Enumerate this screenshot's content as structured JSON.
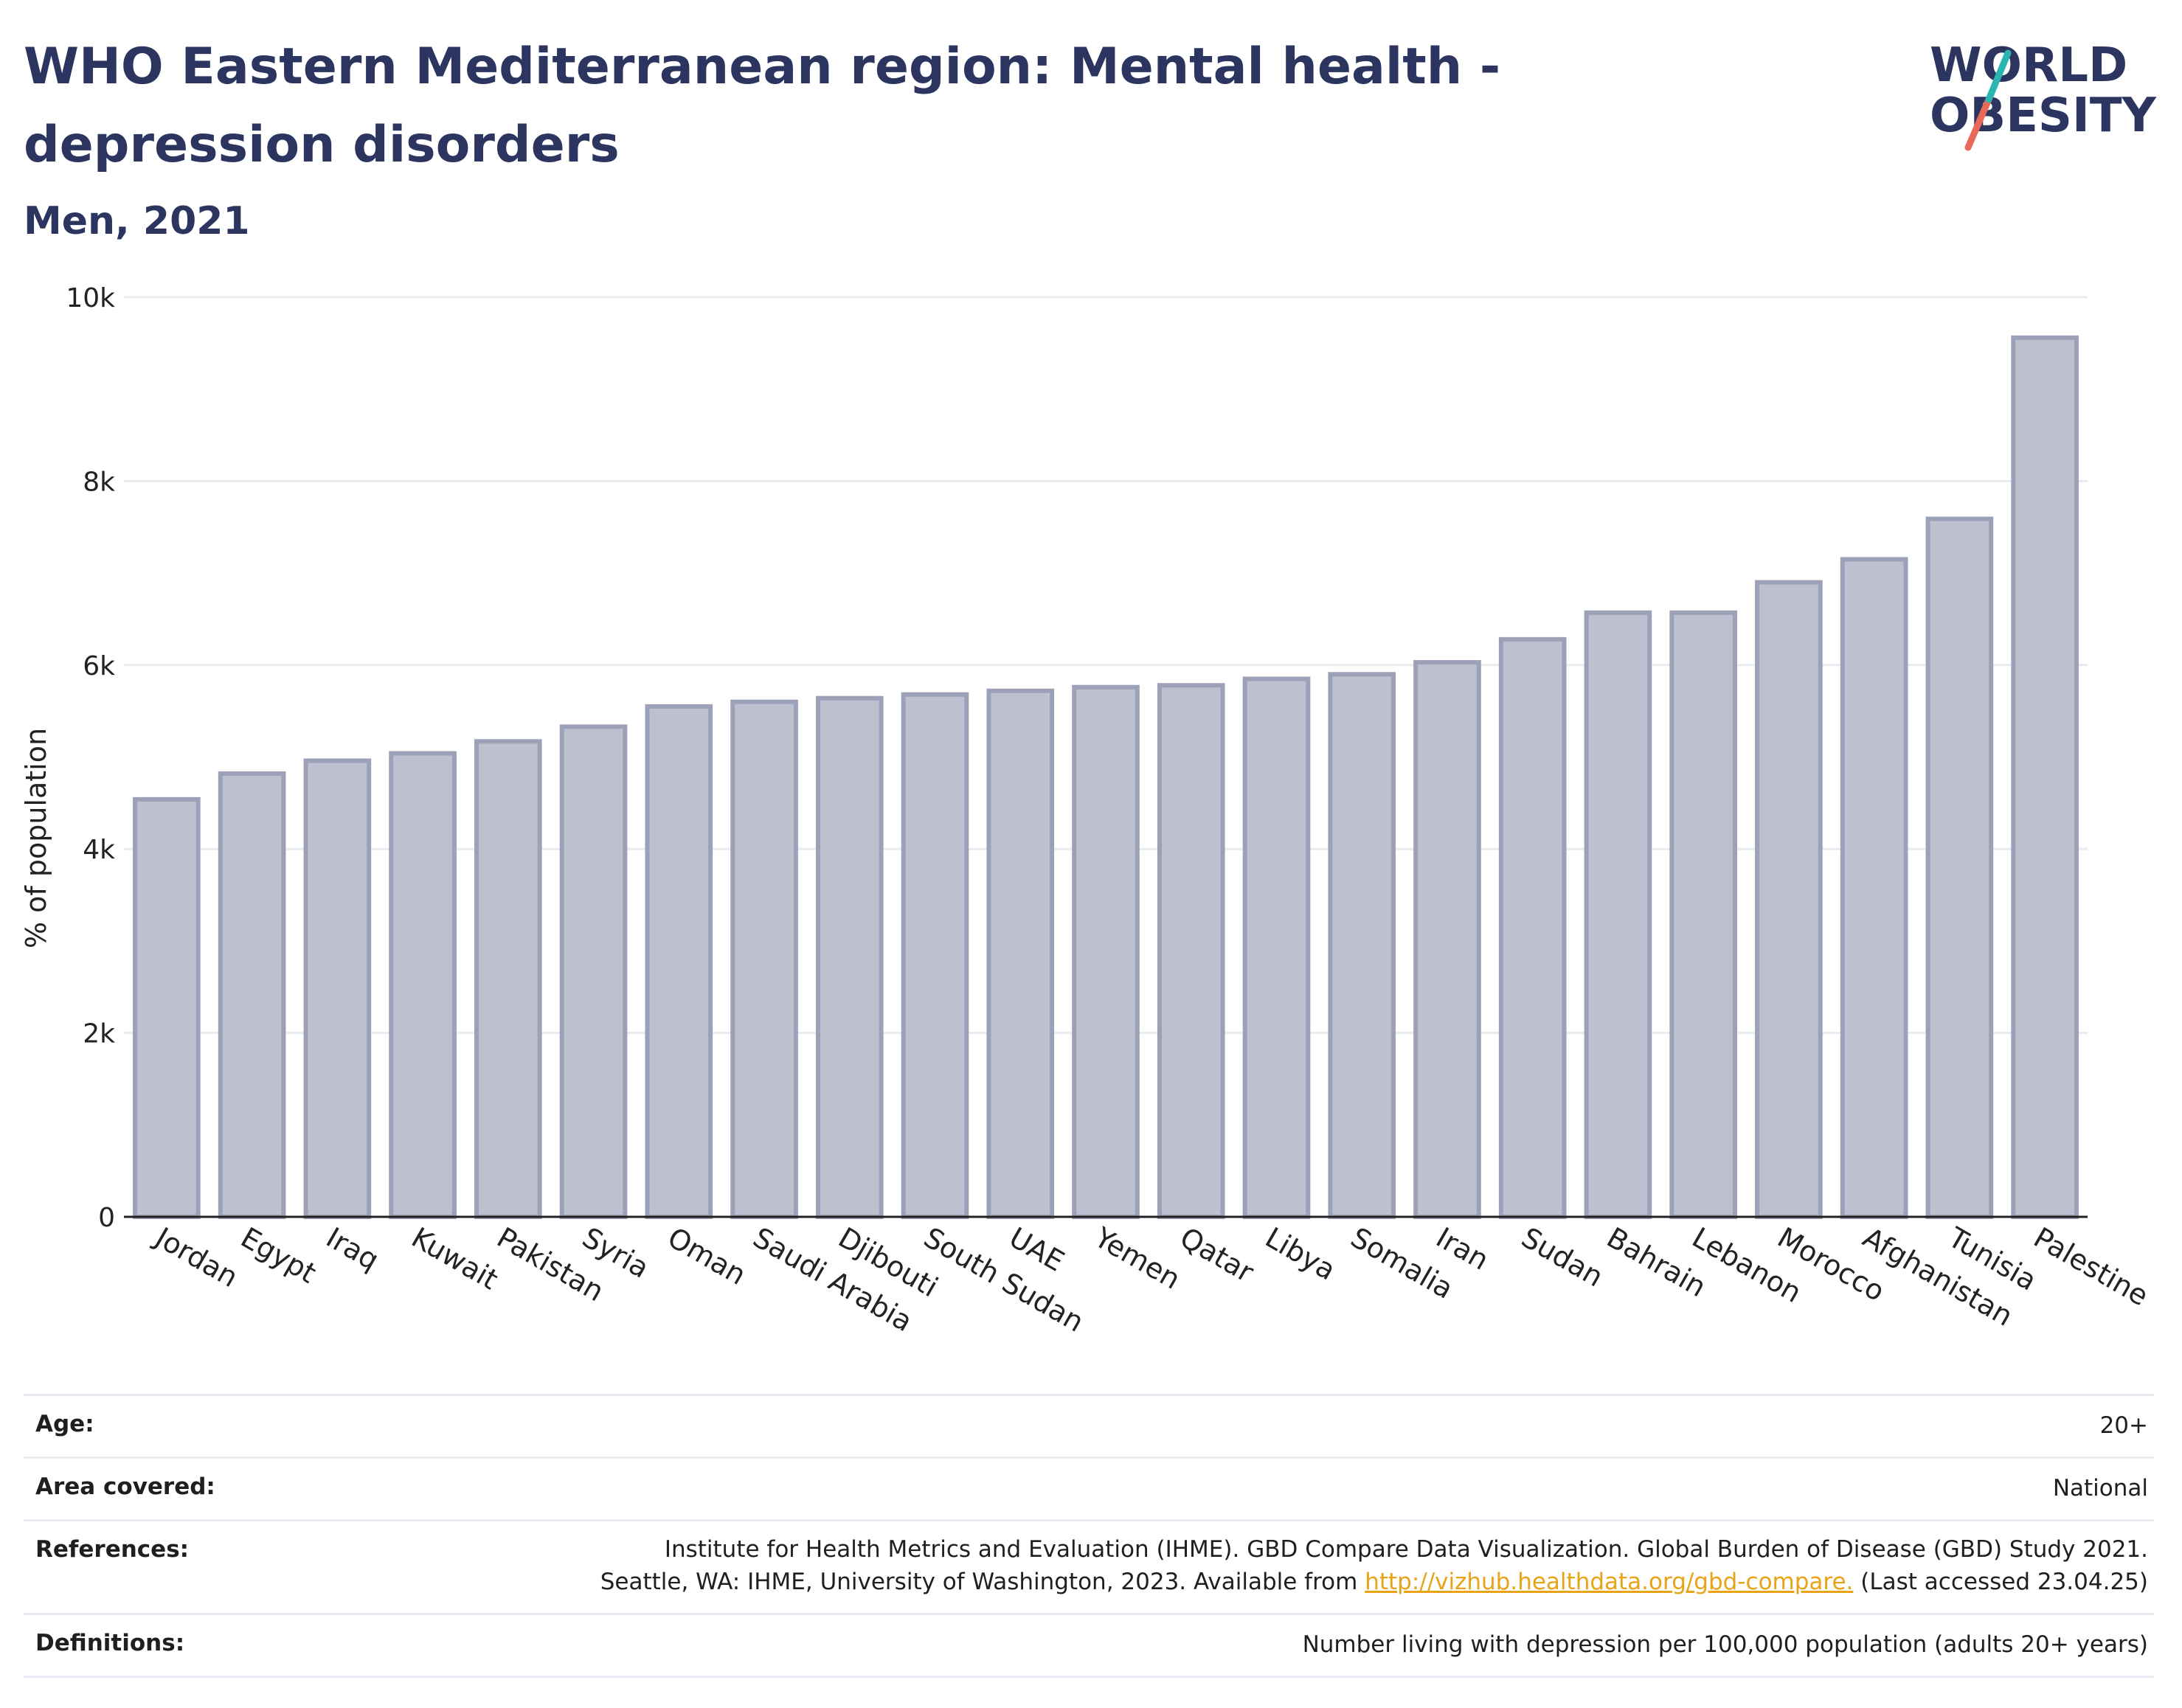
{
  "header": {
    "title": "WHO Eastern Mediterranean region: Mental health - depression disorders",
    "subtitle": "Men, 2021"
  },
  "logo": {
    "line1": "WORLD",
    "line2": "OBESITY",
    "colors": {
      "text": "#2b3560",
      "slash_teal": "#2bb5b0",
      "slash_coral": "#e8685a"
    }
  },
  "chart_data": {
    "type": "bar",
    "title": "WHO Eastern Mediterranean region: Mental health - depression disorders",
    "subtitle": "Men, 2021",
    "xlabel": "",
    "ylabel": "% of population",
    "ylim": [
      0,
      10000
    ],
    "yticks": [
      0,
      2000,
      4000,
      6000,
      8000,
      10000
    ],
    "ytick_labels": [
      "0",
      "2k",
      "4k",
      "6k",
      "8k",
      "10k"
    ],
    "grid": true,
    "legend": "none",
    "categories": [
      "Jordan",
      "Egypt",
      "Iraq",
      "Kuwait",
      "Pakistan",
      "Syria",
      "Oman",
      "Saudi Arabia",
      "Djibouti",
      "South Sudan",
      "UAE",
      "Yemen",
      "Qatar",
      "Libya",
      "Somalia",
      "Iran",
      "Sudan",
      "Bahrain",
      "Lebanon",
      "Morocco",
      "Afghanistan",
      "Tunisia",
      "Palestine"
    ],
    "values": [
      4540,
      4820,
      4960,
      5040,
      5170,
      5330,
      5550,
      5600,
      5640,
      5680,
      5720,
      5760,
      5780,
      5850,
      5900,
      6030,
      6280,
      6570,
      6570,
      6900,
      7150,
      7590,
      9560
    ],
    "colors": {
      "bar_fill": "#bcc0cf",
      "bar_stroke": "#9ca1b8",
      "grid": "#e9ebf1",
      "axis": "#222222"
    }
  },
  "meta": {
    "age": {
      "label": "Age:",
      "value": "20+"
    },
    "area": {
      "label": "Area covered:",
      "value": "National"
    },
    "references": {
      "label": "References:",
      "line1": "Institute for Health Metrics and Evaluation (IHME). GBD Compare Data Visualization. Global Burden of Disease (GBD) Study 2021.",
      "line2_pre": "Seattle, WA: IHME, University of Washington, 2023. Available from ",
      "link": "http://vizhub.healthdata.org/gbd-compare.",
      "line2_post": " (Last accessed 23.04.25)"
    },
    "definitions": {
      "label": "Definitions:",
      "value": "Number living with depression per 100,000 population (adults 20+ years)"
    }
  }
}
